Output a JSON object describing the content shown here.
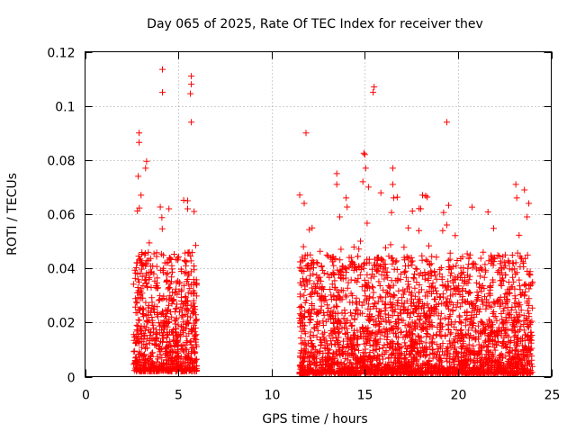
{
  "chart_data": {
    "type": "scatter",
    "title": "Day 065 of 2025, Rate Of TEC Index for receiver thev",
    "xlabel": "GPS time / hours",
    "ylabel": "ROTI / TECUs",
    "xlim": [
      0,
      25
    ],
    "ylim": [
      0,
      0.12
    ],
    "xticks": [
      0,
      5,
      10,
      15,
      20,
      25
    ],
    "xtick_labels": [
      "0",
      "5",
      "10",
      "15",
      "20",
      "25"
    ],
    "yticks": [
      0,
      0.02,
      0.04,
      0.06,
      0.08,
      0.1,
      0.12
    ],
    "ytick_labels": [
      "0",
      "0.02",
      "0.04",
      "0.06",
      "0.08",
      "0.1",
      "0.12"
    ],
    "grid": true,
    "marker": "+",
    "color": "#ff0000",
    "series": [
      {
        "name": "ROTI",
        "segments": [
          {
            "x_start": 2.6,
            "x_end": 6.0,
            "base_min": 0.002,
            "base_mean": 0.012,
            "spread": 0.02
          },
          {
            "x_start": 11.5,
            "x_end": 24.0,
            "base_min": 0.001,
            "base_mean": 0.011,
            "spread": 0.02
          }
        ],
        "outliers": [
          {
            "x": 2.9,
            "y": 0.09
          },
          {
            "x": 2.9,
            "y": 0.0865
          },
          {
            "x": 3.0,
            "y": 0.067
          },
          {
            "x": 3.3,
            "y": 0.0795
          },
          {
            "x": 3.25,
            "y": 0.077
          },
          {
            "x": 2.85,
            "y": 0.074
          },
          {
            "x": 4.15,
            "y": 0.1135
          },
          {
            "x": 4.15,
            "y": 0.105
          },
          {
            "x": 4.5,
            "y": 0.062
          },
          {
            "x": 5.7,
            "y": 0.111
          },
          {
            "x": 5.7,
            "y": 0.108
          },
          {
            "x": 5.65,
            "y": 0.1045
          },
          {
            "x": 5.7,
            "y": 0.094
          },
          {
            "x": 5.5,
            "y": 0.065
          },
          {
            "x": 5.5,
            "y": 0.062
          },
          {
            "x": 5.85,
            "y": 0.061
          },
          {
            "x": 11.85,
            "y": 0.09
          },
          {
            "x": 11.75,
            "y": 0.064
          },
          {
            "x": 13.5,
            "y": 0.075
          },
          {
            "x": 13.5,
            "y": 0.071
          },
          {
            "x": 14.0,
            "y": 0.066
          },
          {
            "x": 14.9,
            "y": 0.072
          },
          {
            "x": 14.95,
            "y": 0.0825
          },
          {
            "x": 15.0,
            "y": 0.082
          },
          {
            "x": 15.05,
            "y": 0.077
          },
          {
            "x": 15.5,
            "y": 0.107
          },
          {
            "x": 15.45,
            "y": 0.105
          },
          {
            "x": 15.2,
            "y": 0.07
          },
          {
            "x": 16.5,
            "y": 0.077
          },
          {
            "x": 16.5,
            "y": 0.071
          },
          {
            "x": 16.55,
            "y": 0.066
          },
          {
            "x": 18.1,
            "y": 0.067
          },
          {
            "x": 18.0,
            "y": 0.062
          },
          {
            "x": 19.4,
            "y": 0.094
          },
          {
            "x": 19.4,
            "y": 0.056
          },
          {
            "x": 23.1,
            "y": 0.071
          },
          {
            "x": 23.15,
            "y": 0.066
          },
          {
            "x": 23.8,
            "y": 0.064
          },
          {
            "x": 23.7,
            "y": 0.059
          }
        ],
        "n_points_per_hour": 230
      }
    ]
  }
}
